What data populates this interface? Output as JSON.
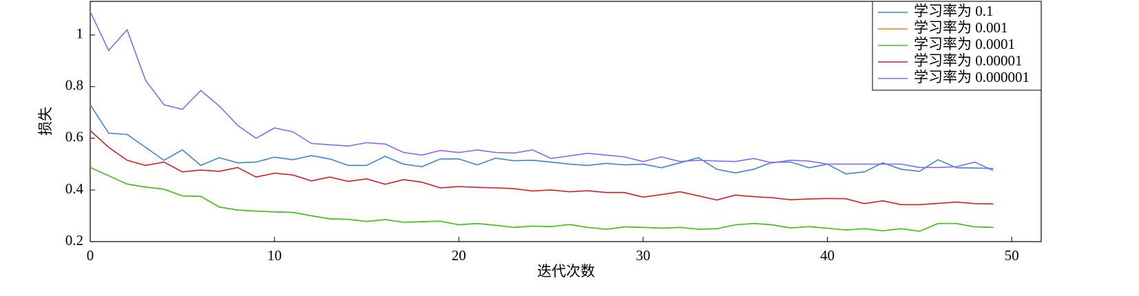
{
  "chart_data": {
    "type": "line",
    "x_label": "迭代次数",
    "y_label": "损失",
    "x": [
      0,
      1,
      2,
      3,
      4,
      5,
      6,
      7,
      8,
      9,
      10,
      11,
      12,
      13,
      14,
      15,
      16,
      17,
      18,
      19,
      20,
      21,
      22,
      23,
      24,
      25,
      26,
      27,
      28,
      29,
      30,
      31,
      32,
      33,
      34,
      35,
      36,
      37,
      38,
      39,
      40,
      41,
      42,
      43,
      44,
      45,
      46,
      47,
      48,
      49
    ],
    "xlim": [
      0,
      51.6
    ],
    "xticks": [
      0,
      10,
      20,
      30,
      40,
      50
    ],
    "ylim": [
      0.2,
      1.13
    ],
    "yticks": [
      0.2,
      0.4,
      0.6,
      0.8,
      1.0
    ],
    "legend": "upper right",
    "series": [
      {
        "name": "学习率为 0.1",
        "color": "#3a86d6",
        "values": [
          0.73,
          0.62,
          0.615,
          0.565,
          0.515,
          0.555,
          0.495,
          0.525,
          0.505,
          0.508,
          0.527,
          0.517,
          0.533,
          0.52,
          0.495,
          0.495,
          0.53,
          0.5,
          0.49,
          0.52,
          0.52,
          0.497,
          0.523,
          0.513,
          0.515,
          0.508,
          0.5,
          0.495,
          0.503,
          0.497,
          0.5,
          0.486,
          0.505,
          0.525,
          0.48,
          0.466,
          0.48,
          0.507,
          0.508,
          0.486,
          0.5,
          0.462,
          0.47,
          0.505,
          0.48,
          0.472,
          0.517,
          0.486,
          0.485,
          0.483
        ]
      },
      {
        "name": "学习率为 0.001",
        "color": "#ff7f0e",
        "values": [
          0.487,
          0.455,
          0.423,
          0.411,
          0.403,
          0.377,
          0.375,
          0.334,
          0.322,
          0.318,
          0.315,
          0.313,
          0.3,
          0.288,
          0.286,
          0.278,
          0.285,
          0.275,
          0.277,
          0.279,
          0.265,
          0.27,
          0.263,
          0.255,
          0.26,
          0.258,
          0.266,
          0.255,
          0.248,
          0.257,
          0.255,
          0.252,
          0.255,
          0.248,
          0.25,
          0.265,
          0.27,
          0.265,
          0.253,
          0.258,
          0.252,
          0.245,
          0.25,
          0.242,
          0.25,
          0.24,
          0.27,
          0.27,
          0.257,
          0.255
        ]
      },
      {
        "name": "学习率为 0.0001",
        "color": "#33cc1f",
        "values": [
          0.487,
          0.455,
          0.423,
          0.411,
          0.403,
          0.377,
          0.375,
          0.334,
          0.322,
          0.318,
          0.315,
          0.313,
          0.3,
          0.288,
          0.286,
          0.278,
          0.285,
          0.275,
          0.277,
          0.279,
          0.265,
          0.27,
          0.263,
          0.255,
          0.26,
          0.258,
          0.266,
          0.255,
          0.248,
          0.257,
          0.255,
          0.252,
          0.255,
          0.248,
          0.25,
          0.265,
          0.27,
          0.265,
          0.253,
          0.258,
          0.252,
          0.245,
          0.25,
          0.242,
          0.25,
          0.24,
          0.27,
          0.27,
          0.257,
          0.255
        ]
      },
      {
        "name": "学习率为 0.00001",
        "color": "#d42020",
        "values": [
          0.63,
          0.565,
          0.515,
          0.495,
          0.508,
          0.47,
          0.477,
          0.472,
          0.487,
          0.45,
          0.465,
          0.458,
          0.435,
          0.45,
          0.433,
          0.443,
          0.422,
          0.44,
          0.43,
          0.408,
          0.413,
          0.41,
          0.408,
          0.405,
          0.396,
          0.4,
          0.393,
          0.397,
          0.39,
          0.39,
          0.372,
          0.382,
          0.393,
          0.377,
          0.361,
          0.38,
          0.374,
          0.37,
          0.362,
          0.365,
          0.367,
          0.366,
          0.347,
          0.358,
          0.343,
          0.343,
          0.348,
          0.353,
          0.347,
          0.346
        ]
      },
      {
        "name": "学习率为 0.000001",
        "color": "#8866ff",
        "values": [
          1.09,
          0.94,
          1.02,
          0.825,
          0.73,
          0.712,
          0.785,
          0.725,
          0.65,
          0.6,
          0.64,
          0.625,
          0.58,
          0.575,
          0.57,
          0.583,
          0.578,
          0.545,
          0.535,
          0.553,
          0.545,
          0.555,
          0.545,
          0.543,
          0.555,
          0.522,
          0.532,
          0.542,
          0.535,
          0.528,
          0.51,
          0.528,
          0.51,
          0.515,
          0.512,
          0.51,
          0.522,
          0.505,
          0.515,
          0.512,
          0.5,
          0.5,
          0.5,
          0.5,
          0.5,
          0.487,
          0.487,
          0.49,
          0.508,
          0.475
        ]
      }
    ]
  }
}
